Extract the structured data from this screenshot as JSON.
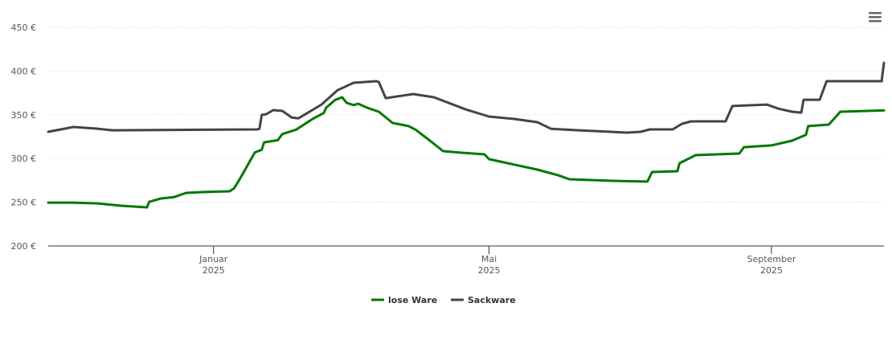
{
  "chart_data": {
    "type": "line",
    "title": "",
    "xlabel": "",
    "ylabel": "",
    "xlim": [
      "2024-10-21",
      "2025-10-20"
    ],
    "ylim": [
      200,
      450
    ],
    "y_ticks": [
      "200 €",
      "250 €",
      "300 €",
      "350 €",
      "400 €",
      "450 €"
    ],
    "y_tick_values": [
      200,
      250,
      300,
      350,
      400,
      450
    ],
    "x_ticks": [
      {
        "date": "2025-01-01",
        "line1": "Januar",
        "line2": "2025"
      },
      {
        "date": "2025-05-01",
        "line1": "Mai",
        "line2": "2025"
      },
      {
        "date": "2025-09-01",
        "line1": "September",
        "line2": "2025"
      }
    ],
    "grid": true,
    "legend_position": "bottom",
    "series": [
      {
        "name": "lose Ware",
        "color": "#007800",
        "points": [
          [
            "2024-10-21",
            249.5
          ],
          [
            "2024-11-01",
            249.5
          ],
          [
            "2024-11-11",
            248.7
          ],
          [
            "2024-11-22",
            246
          ],
          [
            "2024-12-03",
            244.1
          ],
          [
            "2024-12-04",
            250.5
          ],
          [
            "2024-12-09",
            254.2
          ],
          [
            "2024-12-15",
            256
          ],
          [
            "2024-12-20",
            260.7
          ],
          [
            "2024-12-27",
            261.6
          ],
          [
            "2025-01-08",
            262.5
          ],
          [
            "2025-01-10",
            266
          ],
          [
            "2025-01-13",
            279
          ],
          [
            "2025-01-16",
            293
          ],
          [
            "2025-01-19",
            307
          ],
          [
            "2025-01-22",
            310
          ],
          [
            "2025-01-23",
            318.5
          ],
          [
            "2025-01-29",
            321
          ],
          [
            "2025-01-31",
            328
          ],
          [
            "2025-02-06",
            333
          ],
          [
            "2025-02-13",
            345
          ],
          [
            "2025-02-18",
            352
          ],
          [
            "2025-02-19",
            358
          ],
          [
            "2025-02-23",
            367
          ],
          [
            "2025-02-26",
            370
          ],
          [
            "2025-02-28",
            363.6
          ],
          [
            "2025-03-03",
            361
          ],
          [
            "2025-03-05",
            362.7
          ],
          [
            "2025-03-09",
            358
          ],
          [
            "2025-03-14",
            353.5
          ],
          [
            "2025-03-20",
            340.6
          ],
          [
            "2025-03-27",
            337
          ],
          [
            "2025-03-30",
            333
          ],
          [
            "2025-04-05",
            321
          ],
          [
            "2025-04-11",
            308.5
          ],
          [
            "2025-04-19",
            306.6
          ],
          [
            "2025-04-29",
            304.8
          ],
          [
            "2025-05-01",
            299.3
          ],
          [
            "2025-05-12",
            293
          ],
          [
            "2025-05-22",
            287.3
          ],
          [
            "2025-05-31",
            281
          ],
          [
            "2025-06-05",
            276.3
          ],
          [
            "2025-06-23",
            274.5
          ],
          [
            "2025-07-09",
            273.6
          ],
          [
            "2025-07-11",
            284.6
          ],
          [
            "2025-07-22",
            285.5
          ],
          [
            "2025-07-23",
            294.7
          ],
          [
            "2025-07-30",
            303.9
          ],
          [
            "2025-08-18",
            305.7
          ],
          [
            "2025-08-20",
            313
          ],
          [
            "2025-09-01",
            315
          ],
          [
            "2025-09-10",
            320.4
          ],
          [
            "2025-09-16",
            327
          ],
          [
            "2025-09-17",
            337
          ],
          [
            "2025-09-26",
            338.8
          ],
          [
            "2025-10-01",
            353.5
          ],
          [
            "2025-10-20",
            355
          ]
        ]
      },
      {
        "name": "Sackware",
        "color": "#434348",
        "points": [
          [
            "2024-10-21",
            330.5
          ],
          [
            "2024-11-01",
            336
          ],
          [
            "2024-11-11",
            334.2
          ],
          [
            "2024-11-18",
            332.3
          ],
          [
            "2025-01-20",
            333.3
          ],
          [
            "2025-01-21",
            334
          ],
          [
            "2025-01-22",
            349.8
          ],
          [
            "2025-01-24",
            350.7
          ],
          [
            "2025-01-27",
            355.3
          ],
          [
            "2025-01-31",
            354.4
          ],
          [
            "2025-02-04",
            347
          ],
          [
            "2025-02-07",
            346
          ],
          [
            "2025-02-17",
            361.7
          ],
          [
            "2025-02-24",
            378
          ],
          [
            "2025-03-03",
            386.6
          ],
          [
            "2025-03-13",
            388.4
          ],
          [
            "2025-03-14",
            387.5
          ],
          [
            "2025-03-17",
            369
          ],
          [
            "2025-03-29",
            373.7
          ],
          [
            "2025-04-07",
            370
          ],
          [
            "2025-04-21",
            356
          ],
          [
            "2025-05-01",
            348
          ],
          [
            "2025-05-12",
            345.2
          ],
          [
            "2025-05-22",
            341.5
          ],
          [
            "2025-05-28",
            334
          ],
          [
            "2025-06-09",
            332.3
          ],
          [
            "2025-06-30",
            329.6
          ],
          [
            "2025-07-06",
            330.5
          ],
          [
            "2025-07-10",
            333.3
          ],
          [
            "2025-07-20",
            333.3
          ],
          [
            "2025-07-24",
            339.7
          ],
          [
            "2025-07-28",
            342.5
          ],
          [
            "2025-08-12",
            342.5
          ],
          [
            "2025-08-15",
            360
          ],
          [
            "2025-08-30",
            361.7
          ],
          [
            "2025-09-04",
            357
          ],
          [
            "2025-09-10",
            353.5
          ],
          [
            "2025-09-14",
            352.5
          ],
          [
            "2025-09-15",
            367.2
          ],
          [
            "2025-09-22",
            367.2
          ],
          [
            "2025-09-25",
            388.4
          ],
          [
            "2025-10-19",
            388.4
          ],
          [
            "2025-10-20",
            409.5
          ]
        ]
      }
    ]
  },
  "menu": {
    "icon": "hamburger-menu-icon"
  }
}
